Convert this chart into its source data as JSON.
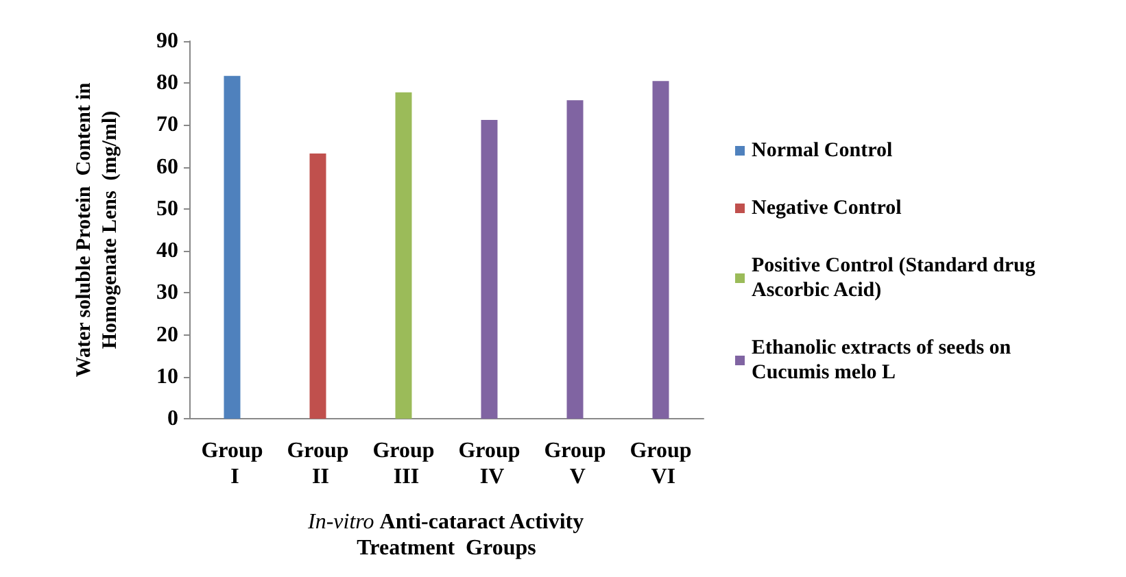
{
  "chart_data": {
    "type": "bar",
    "xlabel": "In-vitro Anti-cataract Activity\nTreatment  Groups",
    "ylabel": "Water soluble Protein  Content in\nHomogenate Lens  (mg/ml)",
    "categories": [
      "Group I",
      "Group II",
      "Group III",
      "Group IV",
      "Group V",
      "Group VI"
    ],
    "series": [
      {
        "name": "Normal Control",
        "color": "#4f81bd",
        "values": [
          81.7,
          null,
          null,
          null,
          null,
          null
        ]
      },
      {
        "name": "Negative Control",
        "color": "#c0504d",
        "values": [
          null,
          63.2,
          null,
          null,
          null,
          null
        ]
      },
      {
        "name": "Positive Control (Standard drug Ascorbic Acid)",
        "color": "#9bbb59",
        "values": [
          null,
          null,
          77.8,
          null,
          null,
          null
        ]
      },
      {
        "name": "Ethanolic extracts of seeds on Cucumis melo L",
        "color": "#8064a2",
        "values": [
          null,
          null,
          null,
          71.2,
          75.9,
          80.5
        ]
      }
    ],
    "ylim": [
      0,
      90
    ],
    "yticks": [
      0,
      10,
      20,
      30,
      40,
      50,
      60,
      70,
      80,
      90
    ],
    "grid": false,
    "legend": "right"
  }
}
